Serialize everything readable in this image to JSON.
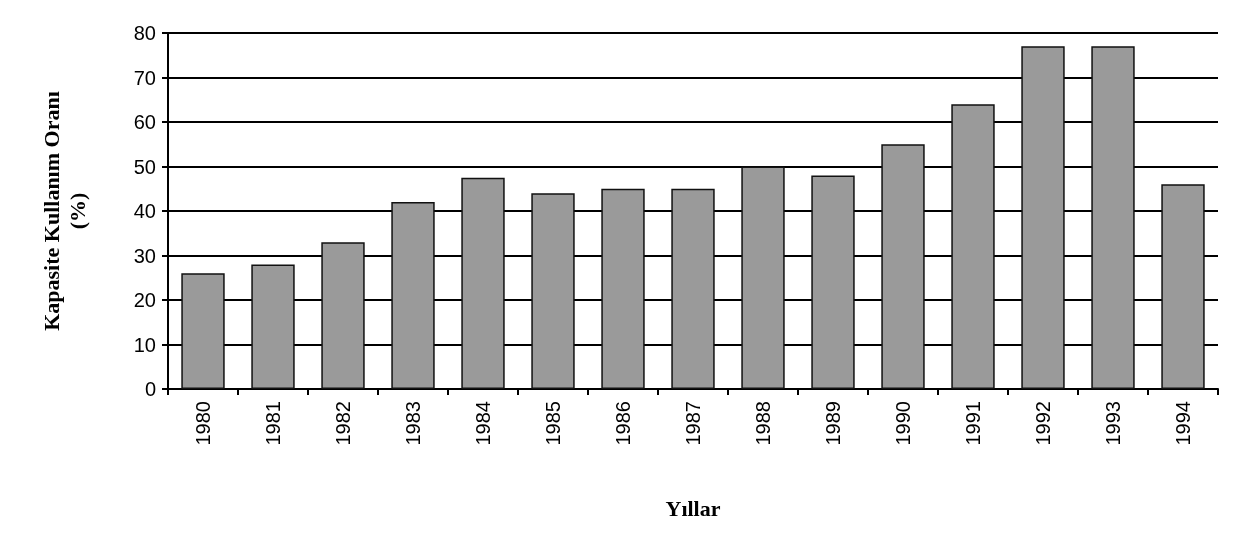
{
  "chart_data": {
    "type": "bar",
    "xlabel": "Yıllar",
    "ylabel": "Kapasite Kullanım Oranı\n(%)",
    "categories": [
      "1980",
      "1981",
      "1982",
      "1983",
      "1984",
      "1985",
      "1986",
      "1987",
      "1988",
      "1989",
      "1990",
      "1991",
      "1992",
      "1993",
      "1994"
    ],
    "values": [
      26,
      28,
      33,
      42,
      47.5,
      44,
      45,
      45,
      50,
      48,
      55,
      64,
      77,
      77,
      46
    ],
    "color": "#9a9a9a",
    "ylim": [
      0,
      80
    ],
    "yticks": [
      0,
      10,
      20,
      30,
      40,
      50,
      60,
      70,
      80
    ],
    "grid": "y"
  }
}
